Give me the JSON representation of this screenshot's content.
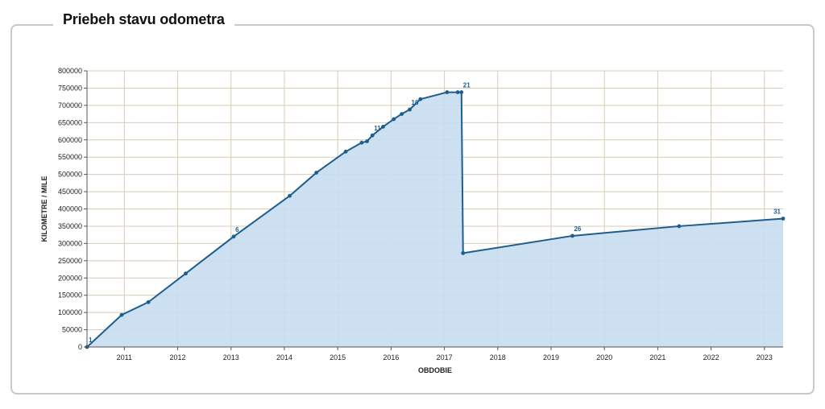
{
  "panel": {
    "title": "Priebeh stavu odometra"
  },
  "chart_data": {
    "type": "area",
    "xlabel": "OBDOBIE",
    "ylabel": "KILOMETRE / MILE",
    "xlim": [
      2010.3,
      2023.35
    ],
    "ylim": [
      0,
      800000
    ],
    "x_ticks": [
      2011,
      2012,
      2013,
      2014,
      2015,
      2016,
      2017,
      2018,
      2019,
      2020,
      2021,
      2022,
      2023
    ],
    "y_ticks": [
      0,
      50000,
      100000,
      150000,
      200000,
      250000,
      300000,
      350000,
      400000,
      450000,
      500000,
      550000,
      600000,
      650000,
      700000,
      750000,
      800000
    ],
    "grid": true,
    "colors": {
      "line": "#1d5e8c",
      "fill": "#c7ddf1",
      "grid": "#d8cbb8",
      "axis": "#555555"
    },
    "series": [
      {
        "points": [
          {
            "x": 2010.3,
            "y": 0
          },
          {
            "x": 2010.95,
            "y": 93000
          },
          {
            "x": 2011.45,
            "y": 130000
          },
          {
            "x": 2012.15,
            "y": 213000
          },
          {
            "x": 2013.05,
            "y": 320000
          },
          {
            "x": 2014.1,
            "y": 438000
          },
          {
            "x": 2014.6,
            "y": 505000
          },
          {
            "x": 2015.15,
            "y": 566000
          },
          {
            "x": 2015.45,
            "y": 592000
          },
          {
            "x": 2015.55,
            "y": 596000
          },
          {
            "x": 2015.65,
            "y": 613000
          },
          {
            "x": 2015.85,
            "y": 638000
          },
          {
            "x": 2016.05,
            "y": 660000
          },
          {
            "x": 2016.2,
            "y": 675000
          },
          {
            "x": 2016.35,
            "y": 688000
          },
          {
            "x": 2016.55,
            "y": 718000
          },
          {
            "x": 2017.05,
            "y": 738000
          },
          {
            "x": 2017.25,
            "y": 738000
          },
          {
            "x": 2017.32,
            "y": 738000
          },
          {
            "x": 2017.35,
            "y": 272000
          },
          {
            "x": 2019.4,
            "y": 322000
          },
          {
            "x": 2021.4,
            "y": 350000
          },
          {
            "x": 2023.35,
            "y": 372000
          }
        ]
      }
    ],
    "point_labels": [
      {
        "text": "1",
        "x": 2010.3,
        "y": 0
      },
      {
        "text": "6",
        "x": 2013.05,
        "y": 320000
      },
      {
        "text": "11",
        "x": 2015.65,
        "y": 613000
      },
      {
        "text": "16",
        "x": 2016.35,
        "y": 688000
      },
      {
        "text": "21",
        "x": 2017.32,
        "y": 738000
      },
      {
        "text": "26",
        "x": 2019.4,
        "y": 322000
      },
      {
        "text": "31",
        "x": 2023.35,
        "y": 372000
      }
    ]
  }
}
